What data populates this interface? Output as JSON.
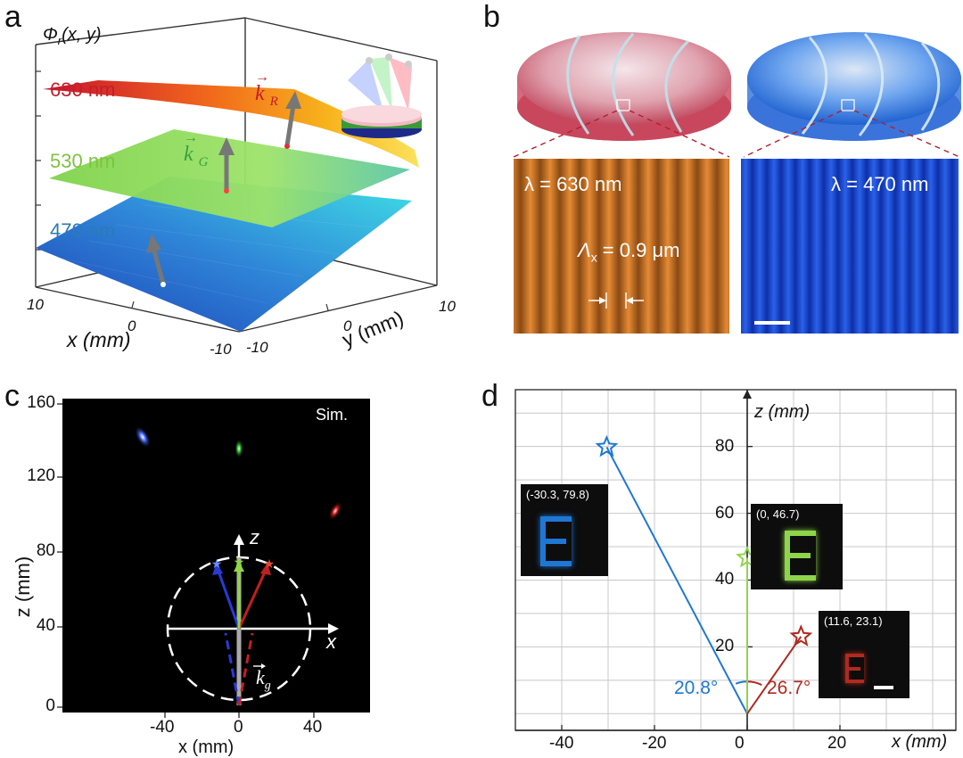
{
  "panel_a": {
    "label": "a",
    "phi_main": "Φ",
    "phi_sub": "r",
    "phi_args": "(x, y)",
    "wl_red": "630 nm",
    "wl_green": "530 nm",
    "wl_blue": "470 nm",
    "k_red_sym": "k",
    "k_red_sub": "R",
    "k_green_sym": "k",
    "k_green_sub": "G",
    "x_label": "x (mm)",
    "y_label": "y (mm)",
    "x_ticks": [
      "10",
      "0",
      "-10"
    ],
    "y_ticks": [
      "-10",
      "0",
      "10"
    ],
    "colors": {
      "red": "#c0202a",
      "green": "#7fc242",
      "blue": "#2a7ab8"
    }
  },
  "panel_b": {
    "label": "b",
    "lambda_red": "λ = 630 nm",
    "lambda_blue": "λ = 470 nm",
    "period_sym": "Λ",
    "period_sub": "x",
    "period_val": " = 0.9 μm"
  },
  "panel_c": {
    "label": "c",
    "sim_label": "Sim.",
    "y_axis_label": "z (mm)",
    "x_axis_label": "x (mm)",
    "y_ticks": [
      "160",
      "120",
      "80",
      "40",
      "0"
    ],
    "x_ticks": [
      "-40",
      "0",
      "40"
    ],
    "inset_z": "z",
    "inset_x": "x",
    "kg_sym": "k",
    "kg_sub": "g"
  },
  "panel_d": {
    "label": "d",
    "z_axis_label": "z (mm)",
    "x_axis_label": "x (mm)",
    "y_ticks": [
      "80",
      "60",
      "40",
      "20"
    ],
    "x_ticks": [
      "-40",
      "-20",
      "0",
      "20"
    ],
    "x_zero": "0",
    "chart_data": {
      "type": "scatter",
      "x_label": "x (mm)",
      "y_label": "z (mm)",
      "xlim": [
        -50,
        45
      ],
      "ylim": [
        -5,
        97
      ],
      "points": [
        {
          "x": -30.3,
          "y": 79.8,
          "label": "(-30.3,  79.8)",
          "color": "#1f77d4"
        },
        {
          "x": 0,
          "y": 46.7,
          "label": "(0,  46.7)",
          "color": "#8fd44a"
        },
        {
          "x": 11.6,
          "y": 23.1,
          "label": "(11.6,  23.1)",
          "color": "#b02a20"
        }
      ],
      "angles": [
        {
          "text": "20.8°",
          "color": "#1f77d4"
        },
        {
          "text": "26.7°",
          "color": "#b02a20"
        }
      ]
    }
  }
}
